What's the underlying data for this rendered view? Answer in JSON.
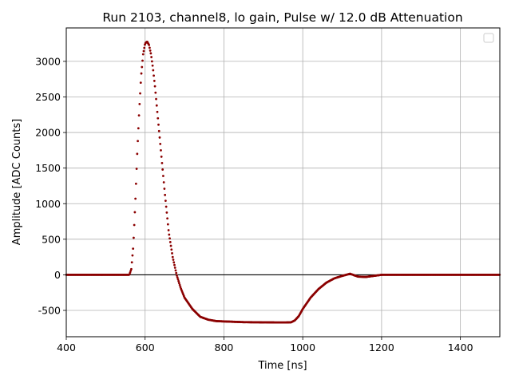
{
  "chart_data": {
    "type": "scatter",
    "title": "Run 2103, channel8, lo gain, Pulse w/ 12.0 dB Attenuation",
    "xlabel": "Time [ns]",
    "ylabel": "Amplitude [ADC Counts]",
    "xlim": [
      400,
      1500
    ],
    "ylim": [
      -870,
      3470
    ],
    "xticks": [
      400,
      600,
      800,
      1000,
      1200,
      1400
    ],
    "yticks": [
      -500,
      0,
      500,
      1000,
      1500,
      2000,
      2500,
      3000
    ],
    "grid": true,
    "legend": "top-right (empty)",
    "series_color": "#8b0000",
    "baseline_color": "#000000",
    "series": [
      {
        "x": [
          400,
          500,
          560,
          565,
          570,
          575,
          580,
          585,
          590,
          595,
          600,
          605,
          610,
          615,
          620,
          625,
          630,
          640,
          650,
          660,
          670,
          680,
          690,
          700,
          720,
          740,
          760,
          780,
          800,
          850,
          900,
          950,
          970,
          980,
          990,
          1000,
          1010,
          1020,
          1040,
          1060,
          1080,
          1100,
          1120,
          1140,
          1160,
          1200,
          1300,
          1400,
          1500
        ],
        "y": [
          0,
          0,
          0,
          80,
          400,
          1000,
          1700,
          2300,
          2800,
          3100,
          3250,
          3280,
          3230,
          3100,
          2900,
          2650,
          2350,
          1750,
          1150,
          600,
          250,
          0,
          -180,
          -320,
          -480,
          -590,
          -630,
          -650,
          -655,
          -665,
          -668,
          -670,
          -668,
          -640,
          -580,
          -480,
          -400,
          -320,
          -200,
          -110,
          -50,
          -15,
          15,
          -25,
          -30,
          0,
          0,
          0,
          0
        ]
      }
    ]
  }
}
